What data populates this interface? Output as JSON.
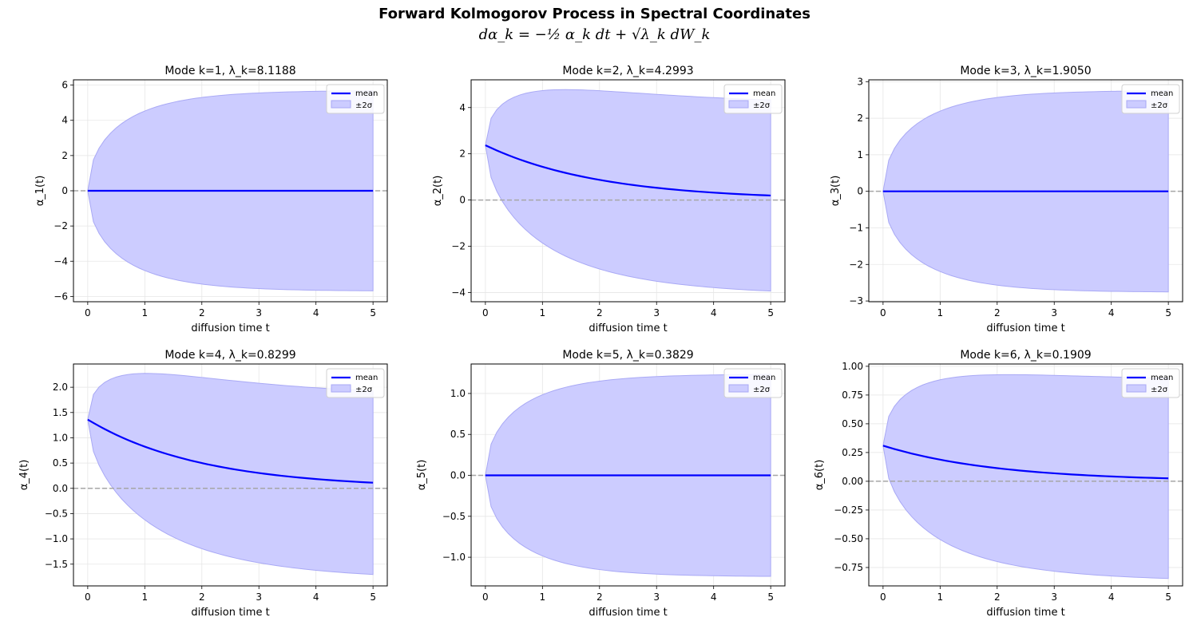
{
  "figure": {
    "title": "Forward Kolmogorov Process in Spectral Coordinates",
    "equation": "dα_k = −½ α_k dt + √λ_k dW_k",
    "colors": {
      "mean_line": "#0000ff",
      "band_fill": "#ccccff",
      "band_edge": "#a9a9f5",
      "zero_line": "#a6a6a6",
      "grid": "#e6e6e6"
    }
  },
  "chart_data": [
    {
      "type": "area",
      "title": "Mode k=1, λ_k=8.1188",
      "xlabel": "diffusion time t",
      "ylabel": "α_1(t)",
      "lambda": 8.1188,
      "mean0": 0,
      "xlim": [
        -0.25,
        5.25
      ],
      "ylim": [
        -6.3,
        6.3
      ],
      "xticks": [
        0,
        1,
        2,
        3,
        4,
        5
      ],
      "yticks": [
        -6,
        -4,
        -2,
        0,
        2,
        4,
        6
      ],
      "ytick_labels": [
        "−6",
        "−4",
        "−2",
        "0",
        "2",
        "4",
        "6"
      ],
      "legend": {
        "position": "top-right",
        "entries": [
          "mean",
          "±2σ"
        ]
      },
      "grid": true
    },
    {
      "type": "area",
      "title": "Mode k=2, λ_k=4.2993",
      "xlabel": "diffusion time t",
      "ylabel": "α_2(t)",
      "lambda": 4.2993,
      "mean0": 2.37,
      "xlim": [
        -0.25,
        5.25
      ],
      "ylim": [
        -4.4,
        5.2
      ],
      "xticks": [
        0,
        1,
        2,
        3,
        4,
        5
      ],
      "yticks": [
        -4,
        -2,
        0,
        2,
        4
      ],
      "ytick_labels": [
        "−4",
        "−2",
        "0",
        "2",
        "4"
      ],
      "legend": {
        "position": "top-right",
        "entries": [
          "mean",
          "±2σ"
        ]
      },
      "grid": true
    },
    {
      "type": "area",
      "title": "Mode k=3, λ_k=1.9050",
      "xlabel": "diffusion time t",
      "ylabel": "α_3(t)",
      "lambda": 1.905,
      "mean0": 0,
      "xlim": [
        -0.25,
        5.25
      ],
      "ylim": [
        -3.02,
        3.05
      ],
      "xticks": [
        0,
        1,
        2,
        3,
        4,
        5
      ],
      "yticks": [
        -3,
        -2,
        -1,
        0,
        1,
        2,
        3
      ],
      "ytick_labels": [
        "−3",
        "−2",
        "−1",
        "0",
        "1",
        "2",
        "3"
      ],
      "legend": {
        "position": "top-right",
        "entries": [
          "mean",
          "±2σ"
        ]
      },
      "grid": true
    },
    {
      "type": "area",
      "title": "Mode k=4, λ_k=0.8299",
      "xlabel": "diffusion time t",
      "ylabel": "α_4(t)",
      "lambda": 0.8299,
      "mean0": 1.36,
      "xlim": [
        -0.25,
        5.25
      ],
      "ylim": [
        -1.93,
        2.46
      ],
      "xticks": [
        0,
        1,
        2,
        3,
        4,
        5
      ],
      "yticks": [
        -1.5,
        -1.0,
        -0.5,
        0.0,
        0.5,
        1.0,
        1.5,
        2.0
      ],
      "ytick_labels": [
        "−1.5",
        "−1.0",
        "−0.5",
        "0.0",
        "0.5",
        "1.0",
        "1.5",
        "2.0"
      ],
      "legend": {
        "position": "top-right",
        "entries": [
          "mean",
          "±2σ"
        ]
      },
      "grid": true
    },
    {
      "type": "area",
      "title": "Mode k=5, λ_k=0.3829",
      "xlabel": "diffusion time t",
      "ylabel": "α_5(t)",
      "lambda": 0.3829,
      "mean0": 0,
      "xlim": [
        -0.25,
        5.25
      ],
      "ylim": [
        -1.35,
        1.36
      ],
      "xticks": [
        0,
        1,
        2,
        3,
        4,
        5
      ],
      "yticks": [
        -1.0,
        -0.5,
        0.0,
        0.5,
        1.0
      ],
      "ytick_labels": [
        "−1.0",
        "−0.5",
        "0.0",
        "0.5",
        "1.0"
      ],
      "legend": {
        "position": "top-right",
        "entries": [
          "mean",
          "±2σ"
        ]
      },
      "grid": true
    },
    {
      "type": "area",
      "title": "Mode k=6, λ_k=0.1909",
      "xlabel": "diffusion time t",
      "ylabel": "α_6(t)",
      "lambda": 0.1909,
      "mean0": 0.31,
      "xlim": [
        -0.25,
        5.25
      ],
      "ylim": [
        -0.91,
        1.02
      ],
      "xticks": [
        0,
        1,
        2,
        3,
        4,
        5
      ],
      "yticks": [
        -0.75,
        -0.5,
        -0.25,
        0.0,
        0.25,
        0.5,
        0.75,
        1.0
      ],
      "ytick_labels": [
        "−0.75",
        "−0.50",
        "−0.25",
        "0.00",
        "0.25",
        "0.50",
        "0.75",
        "1.00"
      ],
      "legend": {
        "position": "top-right",
        "entries": [
          "mean",
          "±2σ"
        ]
      },
      "grid": true
    }
  ]
}
